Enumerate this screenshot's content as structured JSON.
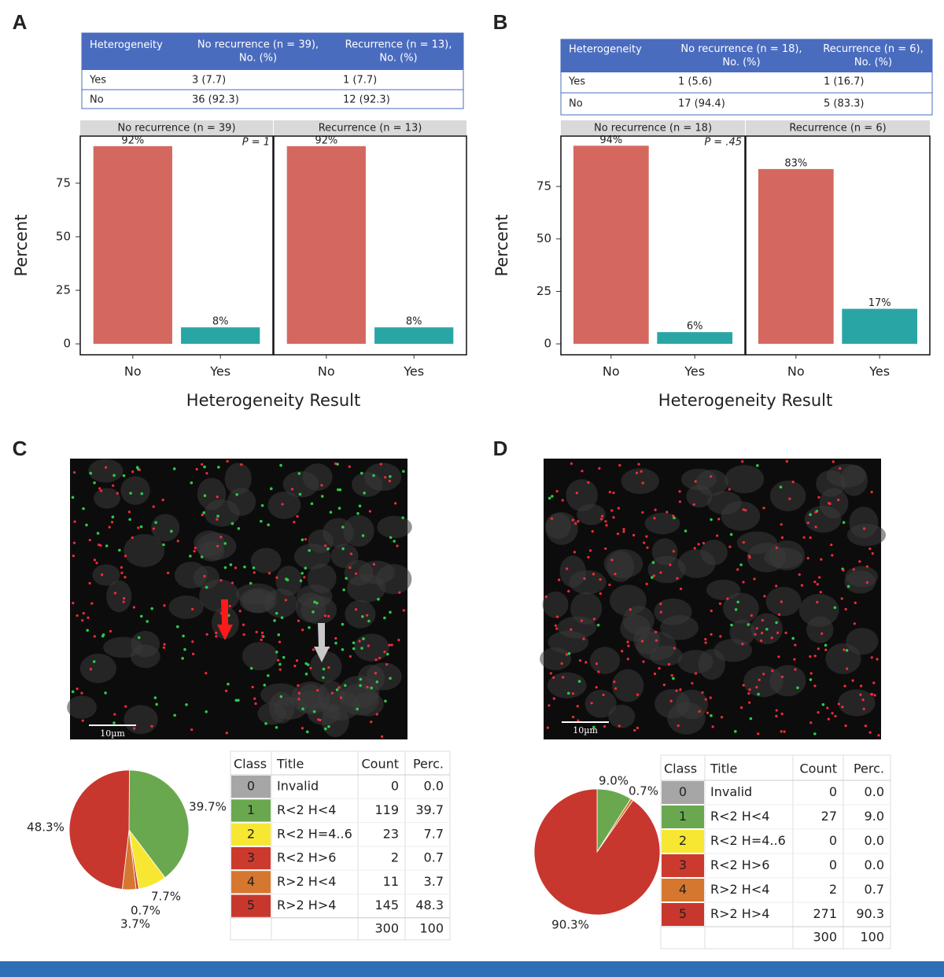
{
  "panel_labels": [
    "A",
    "B",
    "C",
    "D"
  ],
  "tables": [
    {
      "columns": [
        [
          "Heterogeneity"
        ],
        [
          "No recurrence (n = 39),",
          "No. (%)"
        ],
        [
          "Recurrence (n = 13),",
          "No. (%)"
        ]
      ],
      "rows": [
        [
          "Yes",
          "3 (7.7)",
          "1 (7.7)"
        ],
        [
          "No",
          "36 (92.3)",
          "12 (92.3)"
        ]
      ]
    },
    {
      "columns": [
        [
          "Heterogeneity"
        ],
        [
          "No recurrence (n = 18),",
          "No. (%)"
        ],
        [
          "Recurrence (n = 6),",
          "No. (%)"
        ]
      ],
      "rows": [
        [
          "Yes",
          "1 (5.6)",
          "1 (16.7)"
        ],
        [
          "No",
          "17 (94.4)",
          "5 (83.3)"
        ]
      ]
    }
  ],
  "chart_data": [
    {
      "type": "bar",
      "ylabel": "Percent",
      "xlabel": "Heterogeneity Result",
      "ylim": [
        -5.1,
        97
      ],
      "yticks": [
        0,
        25,
        50,
        75
      ],
      "colors": [
        "#d4685f",
        "#2aa5a5"
      ],
      "facets": [
        {
          "title": "No recurrence (n = 39)",
          "annotation": "P = 1",
          "categories": [
            "No",
            "Yes"
          ],
          "values": [
            92.3,
            7.7
          ],
          "value_labels": [
            "92%",
            "8%"
          ]
        },
        {
          "title": "Recurrence (n = 13)",
          "categories": [
            "No",
            "Yes"
          ],
          "values": [
            92.3,
            7.7
          ],
          "value_labels": [
            "92%",
            "8%"
          ]
        }
      ]
    },
    {
      "type": "bar",
      "ylabel": "Percent",
      "xlabel": "Heterogeneity Result",
      "ylim": [
        -5.2,
        99
      ],
      "yticks": [
        0,
        25,
        50,
        75
      ],
      "colors": [
        "#d4685f",
        "#2aa5a5"
      ],
      "facets": [
        {
          "title": "No recurrence (n = 18)",
          "annotation": "P = .45",
          "categories": [
            "No",
            "Yes"
          ],
          "values": [
            94.4,
            5.6
          ],
          "value_labels": [
            "94%",
            "6%"
          ]
        },
        {
          "title": "Recurrence (n = 6)",
          "categories": [
            "No",
            "Yes"
          ],
          "values": [
            83.3,
            16.7
          ],
          "value_labels": [
            "83%",
            "17%"
          ]
        }
      ]
    },
    {
      "type": "pie",
      "values": [
        0,
        39.7,
        7.7,
        0.7,
        3.7,
        48.3
      ],
      "value_labels": [
        null,
        "39.7%",
        "7.7%",
        "0.7%",
        "3.7%",
        "48.3%"
      ],
      "colors": [
        "#a6a6a6",
        "#6aa84f",
        "#f7e733",
        "#cc3a2e",
        "#d6772f",
        "#c8372d"
      ]
    },
    {
      "type": "pie",
      "values": [
        0,
        9.0,
        0,
        0,
        0.7,
        90.3
      ],
      "value_labels": [
        null,
        "9.0%",
        null,
        null,
        "0.7%",
        "90.3%"
      ],
      "colors": [
        "#a6a6a6",
        "#6aa84f",
        "#f7e733",
        "#cc3a2e",
        "#d6772f",
        "#c8372d"
      ]
    }
  ],
  "images": [
    {
      "scale_bar": "10µm"
    },
    {
      "scale_bar": "10µm"
    }
  ],
  "pie_tables": [
    {
      "columns": [
        "Class",
        "Title",
        "Count",
        "Perc."
      ],
      "rows": [
        [
          "0",
          "Invalid",
          "0",
          "0.0"
        ],
        [
          "1",
          "R<2 H<4",
          "119",
          "39.7"
        ],
        [
          "2",
          "R<2 H=4..6",
          "23",
          "7.7"
        ],
        [
          "3",
          "R<2 H>6",
          "2",
          "0.7"
        ],
        [
          "4",
          "R>2 H<4",
          "11",
          "3.7"
        ],
        [
          "5",
          "R>2 H>4",
          "145",
          "48.3"
        ]
      ],
      "total": {
        "count": "300",
        "perc": "100"
      }
    },
    {
      "columns": [
        "Class",
        "Title",
        "Count",
        "Perc."
      ],
      "rows": [
        [
          "0",
          "Invalid",
          "0",
          "0.0"
        ],
        [
          "1",
          "R<2 H<4",
          "27",
          "9.0"
        ],
        [
          "2",
          "R<2 H=4..6",
          "0",
          "0.0"
        ],
        [
          "3",
          "R<2 H>6",
          "0",
          "0.0"
        ],
        [
          "4",
          "R>2 H<4",
          "2",
          "0.7"
        ],
        [
          "5",
          "R>2 H>4",
          "271",
          "90.3"
        ]
      ],
      "total": {
        "count": "300",
        "perc": "100"
      }
    }
  ]
}
